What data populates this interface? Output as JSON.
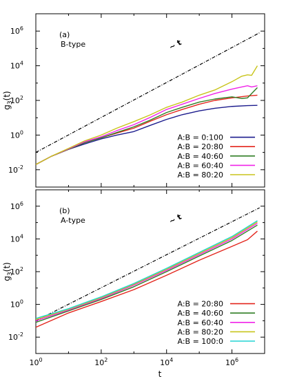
{
  "chart_data": [
    {
      "type": "line",
      "panel_label": "(a)",
      "panel_subtitle": "B-type",
      "xlabel": "",
      "ylabel": "g3(t)",
      "xscale": "log",
      "yscale": "log",
      "xlim": [
        1,
        10000000
      ],
      "ylim": [
        0.001,
        10000000
      ],
      "x_ticks": [
        "10^0",
        "10^2",
        "10^4",
        "10^6"
      ],
      "y_ticks": [
        "10^-2",
        "10^0",
        "10^2",
        "10^4",
        "10^6"
      ],
      "legend_position": "bottom-right",
      "reference_line": {
        "label": "~ t",
        "points": [
          [
            1,
            0.1
          ],
          [
            7000000,
            800000
          ]
        ],
        "color": "#000000"
      },
      "series": [
        {
          "name": "A:B = 0:100",
          "color": "#1a1a8c",
          "points": [
            [
              1,
              0.02
            ],
            [
              3,
              0.06
            ],
            [
              10,
              0.15
            ],
            [
              30,
              0.3
            ],
            [
              100,
              0.6
            ],
            [
              300,
              1
            ],
            [
              1000,
              1.6
            ],
            [
              3000,
              3.5
            ],
            [
              10000,
              8
            ],
            [
              30000,
              15
            ],
            [
              100000,
              25
            ],
            [
              300000,
              35
            ],
            [
              1000000,
              45
            ],
            [
              3000000,
              50
            ],
            [
              6000000,
              52
            ]
          ]
        },
        {
          "name": "A:B = 20:80",
          "color": "#e3241b",
          "points": [
            [
              1,
              0.02
            ],
            [
              3,
              0.06
            ],
            [
              10,
              0.15
            ],
            [
              30,
              0.35
            ],
            [
              100,
              0.7
            ],
            [
              300,
              1.3
            ],
            [
              1000,
              2.5
            ],
            [
              3000,
              6
            ],
            [
              10000,
              15
            ],
            [
              30000,
              30
            ],
            [
              100000,
              60
            ],
            [
              300000,
              100
            ],
            [
              1000000,
              140
            ],
            [
              3000000,
              180
            ],
            [
              6000000,
              200
            ]
          ]
        },
        {
          "name": "A:B = 40:60",
          "color": "#2f7d24",
          "points": [
            [
              1,
              0.02
            ],
            [
              3,
              0.06
            ],
            [
              10,
              0.15
            ],
            [
              30,
              0.35
            ],
            [
              100,
              0.7
            ],
            [
              300,
              1.4
            ],
            [
              1000,
              3
            ],
            [
              3000,
              7
            ],
            [
              10000,
              20
            ],
            [
              30000,
              40
            ],
            [
              100000,
              80
            ],
            [
              300000,
              120
            ],
            [
              1000000,
              160
            ],
            [
              2000000,
              130
            ],
            [
              3000000,
              140
            ],
            [
              4000000,
              250
            ],
            [
              6000000,
              550
            ]
          ]
        },
        {
          "name": "A:B = 60:40",
          "color": "#f022e8",
          "points": [
            [
              1,
              0.02
            ],
            [
              3,
              0.06
            ],
            [
              10,
              0.16
            ],
            [
              30,
              0.4
            ],
            [
              100,
              0.8
            ],
            [
              300,
              1.8
            ],
            [
              1000,
              4
            ],
            [
              3000,
              10
            ],
            [
              10000,
              30
            ],
            [
              30000,
              60
            ],
            [
              100000,
              130
            ],
            [
              300000,
              250
            ],
            [
              1000000,
              450
            ],
            [
              2000000,
              600
            ],
            [
              3000000,
              700
            ],
            [
              4000000,
              600
            ],
            [
              6000000,
              700
            ]
          ]
        },
        {
          "name": "A:B = 80:20",
          "color": "#c8c41a",
          "points": [
            [
              1,
              0.02
            ],
            [
              3,
              0.06
            ],
            [
              10,
              0.17
            ],
            [
              30,
              0.45
            ],
            [
              100,
              1
            ],
            [
              300,
              2.5
            ],
            [
              1000,
              6
            ],
            [
              3000,
              14
            ],
            [
              10000,
              40
            ],
            [
              30000,
              80
            ],
            [
              100000,
              200
            ],
            [
              300000,
              400
            ],
            [
              1000000,
              1200
            ],
            [
              2000000,
              2500
            ],
            [
              3000000,
              3000
            ],
            [
              4000000,
              2800
            ],
            [
              6000000,
              10000
            ]
          ]
        }
      ]
    },
    {
      "type": "line",
      "panel_label": "(b)",
      "panel_subtitle": "A-type",
      "xlabel": "t",
      "ylabel": "g3(t)",
      "xscale": "log",
      "yscale": "log",
      "xlim": [
        1,
        10000000
      ],
      "ylim": [
        0.001,
        10000000
      ],
      "x_ticks": [
        "10^0",
        "10^2",
        "10^4",
        "10^6"
      ],
      "y_ticks": [
        "10^-2",
        "10^0",
        "10^2",
        "10^4",
        "10^6"
      ],
      "legend_position": "bottom-right",
      "reference_line": {
        "label": "~ t",
        "points": [
          [
            1,
            0.1
          ],
          [
            7000000,
            800000
          ]
        ],
        "color": "#000000"
      },
      "series": [
        {
          "name": "A:B = 20:80",
          "color": "#e3241b",
          "points": [
            [
              1,
              0.04
            ],
            [
              10,
              0.3
            ],
            [
              100,
              1.5
            ],
            [
              1000,
              8
            ],
            [
              10000,
              60
            ],
            [
              100000,
              500
            ],
            [
              1000000,
              3500
            ],
            [
              3000000,
              9000
            ],
            [
              6000000,
              30000
            ]
          ]
        },
        {
          "name": "A:B = 40:60",
          "color": "#2f7d24",
          "points": [
            [
              1,
              0.08
            ],
            [
              10,
              0.4
            ],
            [
              100,
              2
            ],
            [
              1000,
              12
            ],
            [
              10000,
              100
            ],
            [
              100000,
              900
            ],
            [
              1000000,
              8000
            ],
            [
              6000000,
              70000
            ]
          ]
        },
        {
          "name": "A:B = 60:40",
          "color": "#f022e8",
          "points": [
            [
              1,
              0.1
            ],
            [
              10,
              0.45
            ],
            [
              100,
              2.3
            ],
            [
              1000,
              15
            ],
            [
              10000,
              120
            ],
            [
              100000,
              1100
            ],
            [
              1000000,
              10000
            ],
            [
              6000000,
              90000
            ]
          ]
        },
        {
          "name": "A:B = 80:20",
          "color": "#c8c41a",
          "points": [
            [
              1,
              0.12
            ],
            [
              10,
              0.5
            ],
            [
              100,
              2.6
            ],
            [
              1000,
              17
            ],
            [
              10000,
              140
            ],
            [
              100000,
              1300
            ],
            [
              1000000,
              12000
            ],
            [
              6000000,
              110000
            ]
          ]
        },
        {
          "name": "A:B = 100:0",
          "color": "#20d4d4",
          "points": [
            [
              1,
              0.14
            ],
            [
              10,
              0.55
            ],
            [
              100,
              2.9
            ],
            [
              1000,
              19
            ],
            [
              10000,
              160
            ],
            [
              100000,
              1500
            ],
            [
              1000000,
              14000
            ],
            [
              6000000,
              130000
            ]
          ]
        }
      ]
    }
  ]
}
